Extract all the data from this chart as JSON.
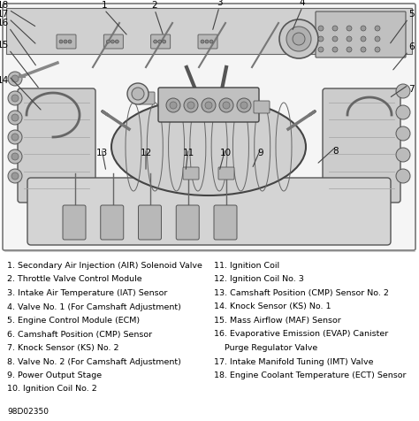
{
  "background_color": "#ffffff",
  "diagram_color": "#d8d8d8",
  "border_color": "#888888",
  "text_color": "#000000",
  "line_color": "#555555",
  "diagram_code": "98D02350",
  "font_size_legend": 6.8,
  "font_size_num": 7.5,
  "left_col_items": [
    "1. Secondary Air Injection (AIR) Solenoid Valve",
    "2. Throttle Valve Control Module",
    "3. Intake Air Temperature (IAT) Sensor",
    "4. Valve No. 1 (For Camshaft Adjustment)",
    "5. Engine Control Module (ECM)",
    "6. Camshaft Position (CMP) Sensor",
    "7. Knock Sensor (KS) No. 2",
    "8. Valve No. 2 (For Camshaft Adjustment)",
    "9. Power Output Stage",
    "10. Ignition Coil No. 2"
  ],
  "right_col_items": [
    "11. Ignition Coil",
    "12. Ignition Coil No. 3",
    "13. Camshaft Position (CMP) Sensor No. 2",
    "14. Knock Sensor (KS) No. 1",
    "15. Mass Airflow (MAF) Sensor",
    "16. Evaporative Emission (EVAP) Canister",
    "    Purge Regulator Valve",
    "17. Intake Manifold Tuning (IMT) Valve",
    "18. Engine Coolant Temperature (ECT) Sensor"
  ]
}
